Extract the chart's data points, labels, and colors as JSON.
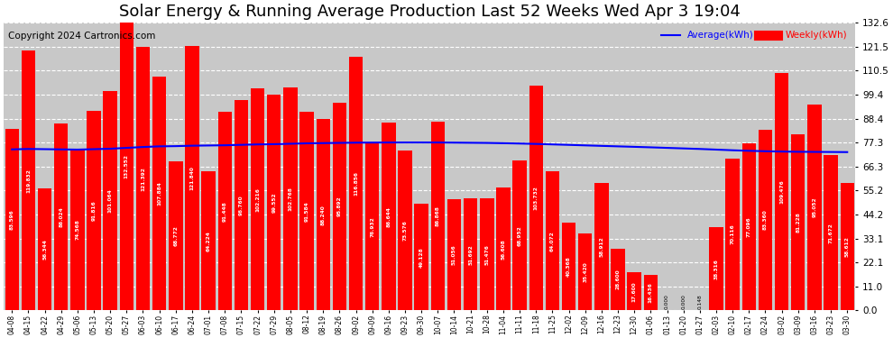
{
  "title": "Solar Energy & Running Average Production Last 52 Weeks Wed Apr 3 19:04",
  "copyright": "Copyright 2024 Cartronics.com",
  "legend_avg": "Average(kWh)",
  "legend_weekly": "Weekly(kWh)",
  "categories": [
    "04-08",
    "04-15",
    "04-22",
    "04-29",
    "05-06",
    "05-13",
    "05-20",
    "05-27",
    "06-03",
    "06-10",
    "06-17",
    "06-24",
    "07-01",
    "07-08",
    "07-15",
    "07-22",
    "07-29",
    "08-05",
    "08-12",
    "08-19",
    "08-26",
    "09-02",
    "09-09",
    "09-16",
    "09-23",
    "09-30",
    "10-07",
    "10-14",
    "10-21",
    "10-28",
    "11-04",
    "11-11",
    "11-18",
    "11-25",
    "12-02",
    "12-09",
    "12-16",
    "12-23",
    "12-30",
    "01-06",
    "01-13",
    "01-20",
    "01-27",
    "02-03",
    "02-10",
    "02-17",
    "02-24",
    "03-02",
    "03-09",
    "03-16",
    "03-23",
    "03-30"
  ],
  "weekly_values": [
    83.596,
    119.832,
    56.344,
    86.024,
    74.568,
    91.816,
    101.064,
    132.552,
    121.392,
    107.884,
    68.772,
    121.84,
    64.224,
    91.448,
    96.76,
    102.216,
    99.552,
    102.768,
    91.584,
    88.24,
    95.892,
    116.856,
    76.932,
    86.644,
    73.576,
    49.128,
    86.868,
    51.056,
    51.692,
    51.476,
    56.608,
    68.952,
    103.732,
    64.072,
    40.368,
    35.42,
    58.912,
    28.6,
    17.6,
    16.436,
    0.0,
    0.0,
    0.148,
    38.316,
    70.116,
    77.096,
    83.36,
    109.476,
    81.228,
    95.052,
    71.672,
    58.612
  ],
  "avg_values": [
    74.2,
    74.4,
    74.3,
    74.2,
    74.1,
    74.3,
    74.5,
    74.9,
    75.3,
    75.6,
    75.7,
    75.9,
    76.0,
    76.1,
    76.3,
    76.5,
    76.6,
    76.8,
    77.0,
    77.1,
    77.2,
    77.3,
    77.35,
    77.38,
    77.4,
    77.4,
    77.38,
    77.32,
    77.25,
    77.18,
    77.05,
    76.9,
    76.72,
    76.5,
    76.28,
    76.05,
    75.82,
    75.6,
    75.38,
    75.15,
    74.9,
    74.65,
    74.4,
    74.1,
    73.8,
    73.55,
    73.35,
    73.2,
    73.1,
    73.05,
    73.0,
    72.95
  ],
  "yticks": [
    0.0,
    11.0,
    22.1,
    33.1,
    44.2,
    55.2,
    66.3,
    77.3,
    88.4,
    99.4,
    110.5,
    121.5,
    132.6
  ],
  "ymax": 132.6,
  "ymin": 0.0,
  "bar_color": "#ff0000",
  "avg_line_color": "#0000ff",
  "background_color": "#ffffff",
  "plot_bg_color": "#c8c8c8",
  "title_fontsize": 13,
  "copyright_color": "#000000",
  "copyright_fontsize": 7.5
}
